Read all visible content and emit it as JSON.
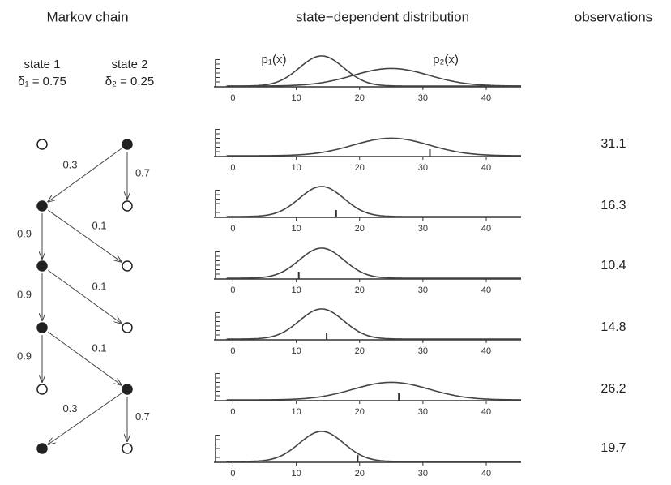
{
  "header": {
    "left": "Markov chain",
    "middle": "state−dependent distribution",
    "right": "observations"
  },
  "states": [
    {
      "label": "state 1",
      "delta": "δ₁ = 0.75"
    },
    {
      "label": "state 2",
      "delta": "δ₂ = 0.25"
    }
  ],
  "distributions": [
    {
      "label": "p₁(x)",
      "mean": 14,
      "sd": 3.5
    },
    {
      "label": "p₂(x)",
      "mean": 25,
      "sd": 6
    }
  ],
  "xlim": [
    -3,
    45.5
  ],
  "xticks": [
    0,
    10,
    20,
    30,
    40
  ],
  "steps": [
    {
      "state": 2,
      "observation": 31.1,
      "transitions": [
        0.3,
        0.7
      ]
    },
    {
      "state": 1,
      "observation": 16.3,
      "transitions": [
        0.9,
        0.1
      ]
    },
    {
      "state": 1,
      "observation": 10.4,
      "transitions": [
        0.9,
        0.1
      ]
    },
    {
      "state": 1,
      "observation": 14.8,
      "transitions": [
        0.9,
        0.1
      ]
    },
    {
      "state": 2,
      "observation": 26.2,
      "transitions": [
        0.3,
        0.7
      ]
    },
    {
      "state": 1,
      "observation": 19.7
    }
  ]
}
